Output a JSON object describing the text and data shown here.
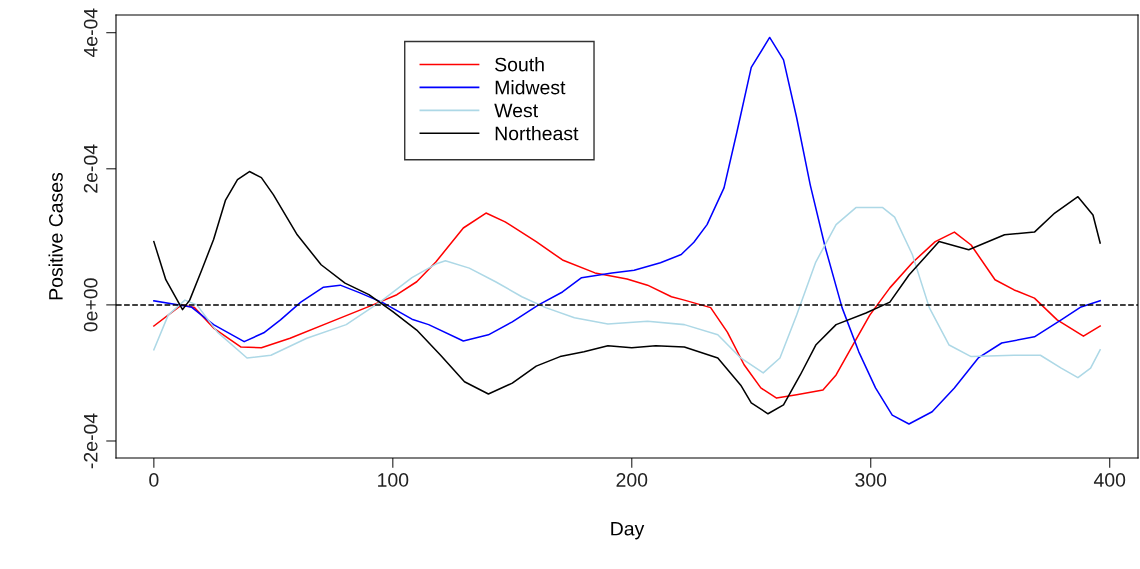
{
  "chart_data": {
    "type": "line",
    "xlabel": "Day",
    "ylabel": "Positive Cases",
    "xlim": [
      -15.84,
      411.84
    ],
    "xticks": [
      0,
      100,
      200,
      300,
      400
    ],
    "ylim": [
      -0.000225,
      0.000426
    ],
    "yticks": [
      {
        "value": -0.0002,
        "label": "-2e-04"
      },
      {
        "value": 0,
        "label": "0e+00"
      },
      {
        "value": 0.0002,
        "label": "2e-04"
      },
      {
        "value": 0.0004,
        "label": "4e-04"
      }
    ],
    "grid": false,
    "legend": "top left",
    "marker": "none",
    "line_style": "solid",
    "ref_lines": [
      {
        "axis": "y",
        "value": 0,
        "color": "#000000",
        "line_style": "dashed"
      }
    ],
    "series": [
      {
        "name": "South",
        "color": "#ff0000",
        "x": [
          0,
          11.6,
          17,
          25,
          36.5,
          45,
          57,
          74,
          91.7,
          101.7,
          110,
          118,
          129.5,
          139,
          147,
          160,
          171,
          184.6,
          198,
          206.6,
          216.6,
          222,
          233,
          240,
          247,
          254,
          260.6,
          269,
          280,
          285.5,
          292.5,
          299.6,
          308,
          317.4,
          327,
          335,
          342,
          352,
          360,
          368.5,
          378,
          389,
          396
        ],
        "values": [
          -3.1e-05,
          0,
          -4e-06,
          -3.4e-05,
          -6.2e-05,
          -6.3e-05,
          -4.9e-05,
          -2.5e-05,
          0,
          1.5e-05,
          3.4e-05,
          6.3e-05,
          0.000113,
          0.000135,
          0.000122,
          9.3e-05,
          6.6e-05,
          4.7e-05,
          3.8e-05,
          2.9e-05,
          1.2e-05,
          7e-06,
          -4e-06,
          -4e-05,
          -8.8e-05,
          -0.000122,
          -0.000137,
          -0.000132,
          -0.000125,
          -0.000103,
          -5.9e-05,
          -1.5e-05,
          2.5e-05,
          6.2e-05,
          9.3e-05,
          0.000107,
          8.8e-05,
          3.7e-05,
          2.2e-05,
          1e-05,
          -2.2e-05,
          -4.6e-05,
          -3.1e-05
        ]
      },
      {
        "name": "Midwest",
        "color": "#0000ff",
        "x": [
          0,
          15.6,
          25,
          37.8,
          46,
          53,
          61.5,
          71,
          78,
          86,
          96,
          108,
          115,
          129.5,
          140,
          150,
          161,
          171,
          179,
          191.7,
          201,
          212,
          220.7,
          226,
          231.5,
          238.6,
          244,
          250,
          257.7,
          263.5,
          269,
          274.7,
          281,
          288,
          295,
          302,
          309,
          316,
          325.7,
          335,
          345,
          354.8,
          368.5,
          379.7,
          388,
          396
        ],
        "values": [
          6e-06,
          -3e-06,
          -2.9e-05,
          -5.4e-05,
          -4.1e-05,
          -2.2e-05,
          4e-06,
          2.6e-05,
          2.9e-05,
          1.8e-05,
          3e-06,
          -2.1e-05,
          -2.9e-05,
          -5.3e-05,
          -4.4e-05,
          -2.5e-05,
          0,
          1.9e-05,
          4e-05,
          4.7e-05,
          5.1e-05,
          6.2e-05,
          7.4e-05,
          9.2e-05,
          0.000118,
          0.000172,
          0.000254,
          0.000349,
          0.000393,
          0.00036,
          0.000275,
          0.000176,
          8.4e-05,
          -4e-06,
          -6.9e-05,
          -0.000122,
          -0.000162,
          -0.000175,
          -0.000157,
          -0.000122,
          -7.8e-05,
          -5.6e-05,
          -4.7e-05,
          -2.2e-05,
          -3e-06,
          6e-06
        ]
      },
      {
        "name": "West",
        "color": "#add8e6",
        "x": [
          0,
          6,
          13,
          18,
          26.6,
          39,
          49,
          64,
          80.5,
          94.6,
          108,
          118,
          122,
          132,
          143,
          154,
          164,
          176,
          190,
          206.6,
          222,
          236,
          245.6,
          255,
          262,
          269,
          277,
          285.5,
          293.8,
          305,
          310,
          317.4,
          324.5,
          332.8,
          342,
          360,
          371,
          379.7,
          386.7,
          392,
          396
        ],
        "values": [
          -6.6e-05,
          -1.5e-05,
          7e-06,
          0,
          -4e-05,
          -7.8e-05,
          -7.4e-05,
          -4.9e-05,
          -2.9e-05,
          4e-06,
          4e-05,
          6e-05,
          6.5e-05,
          5.4e-05,
          3.4e-05,
          1.2e-05,
          -4e-06,
          -1.9e-05,
          -2.8e-05,
          -2.4e-05,
          -2.9e-05,
          -4.4e-05,
          -7.8e-05,
          -0.0001,
          -7.8e-05,
          -1.5e-05,
          6.3e-05,
          0.000118,
          0.000143,
          0.000143,
          0.000129,
          7.4e-05,
          -4e-06,
          -5.9e-05,
          -7.6e-05,
          -7.4e-05,
          -7.4e-05,
          -9.3e-05,
          -0.000107,
          -9.3e-05,
          -6.6e-05
        ]
      },
      {
        "name": "Northeast",
        "color": "#000000",
        "x": [
          0,
          5,
          12,
          15,
          20,
          25,
          30,
          35,
          40,
          45,
          50,
          60,
          70,
          80,
          90,
          100,
          110,
          120,
          130,
          140,
          150,
          160,
          170,
          180,
          190,
          200,
          210,
          222,
          236,
          245.6,
          250,
          257,
          263.5,
          270.5,
          277,
          285.5,
          298,
          308,
          316,
          328.6,
          341,
          356,
          368.5,
          377,
          386.7,
          393,
          396
        ],
        "values": [
          9.3e-05,
          3.7e-05,
          -7e-06,
          7e-06,
          5.1e-05,
          9.6e-05,
          0.000154,
          0.000184,
          0.000196,
          0.000187,
          0.000162,
          0.000103,
          5.9e-05,
          3.2e-05,
          1.5e-05,
          -1e-05,
          -3.7e-05,
          -7.4e-05,
          -0.000113,
          -0.000131,
          -0.000115,
          -9e-05,
          -7.6e-05,
          -6.9e-05,
          -6e-05,
          -6.3e-05,
          -6e-05,
          -6.2e-05,
          -7.8e-05,
          -0.000118,
          -0.000144,
          -0.00016,
          -0.000147,
          -0.000103,
          -5.9e-05,
          -2.9e-05,
          -1.2e-05,
          4e-06,
          4.4e-05,
          9.3e-05,
          8.1e-05,
          0.000103,
          0.000107,
          0.000135,
          0.000159,
          0.000132,
          9.1e-05
        ]
      }
    ]
  }
}
